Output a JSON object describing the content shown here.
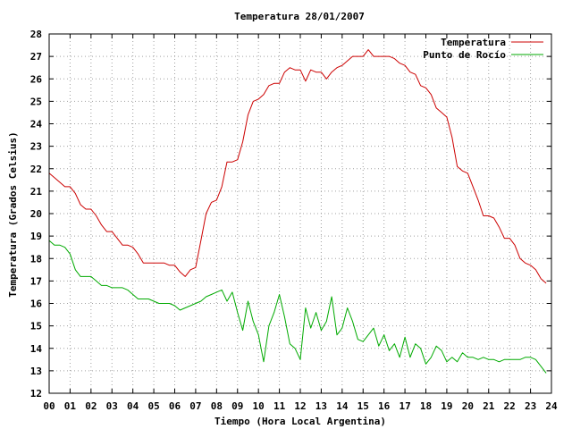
{
  "chart_data": {
    "type": "line",
    "title": "Temperatura 28/01/2007",
    "xlabel": "Tiempo (Hora Local Argentina)",
    "ylabel": "Temperatura (Grados Celsius)",
    "xlim": [
      0,
      24
    ],
    "ylim": [
      12,
      28
    ],
    "x_ticks": [
      "00",
      "01",
      "02",
      "03",
      "04",
      "05",
      "06",
      "07",
      "08",
      "09",
      "10",
      "11",
      "12",
      "13",
      "14",
      "15",
      "16",
      "17",
      "18",
      "19",
      "20",
      "21",
      "22",
      "23",
      "24"
    ],
    "y_ticks": [
      "12",
      "13",
      "14",
      "15",
      "16",
      "17",
      "18",
      "19",
      "20",
      "21",
      "22",
      "23",
      "24",
      "25",
      "26",
      "27",
      "28"
    ],
    "grid": true,
    "legend_position": "top-right",
    "series": [
      {
        "name": "Temperatura",
        "color": "#cc0000",
        "x": [
          0,
          0.25,
          0.5,
          0.75,
          1.0,
          1.25,
          1.5,
          1.75,
          2.0,
          2.25,
          2.5,
          2.75,
          3.0,
          3.25,
          3.5,
          3.75,
          4.0,
          4.25,
          4.5,
          4.75,
          5.0,
          5.25,
          5.5,
          5.75,
          6.0,
          6.25,
          6.5,
          6.75,
          7.0,
          7.25,
          7.5,
          7.75,
          8.0,
          8.25,
          8.5,
          8.75,
          9.0,
          9.25,
          9.5,
          9.75,
          10.0,
          10.25,
          10.5,
          10.75,
          11.0,
          11.25,
          11.5,
          11.75,
          12.0,
          12.25,
          12.5,
          12.75,
          13.0,
          13.25,
          13.5,
          13.75,
          14.0,
          14.25,
          14.5,
          14.75,
          15.0,
          15.25,
          15.5,
          15.75,
          16.0,
          16.25,
          16.5,
          16.75,
          17.0,
          17.25,
          17.5,
          17.75,
          18.0,
          18.25,
          18.5,
          18.75,
          19.0,
          19.25,
          19.5,
          19.75,
          20.0,
          20.25,
          20.5,
          20.75,
          21.0,
          21.25,
          21.5,
          21.75,
          22.0,
          22.25,
          22.5,
          22.75,
          23.0,
          23.25,
          23.5,
          23.75
        ],
        "values": [
          21.8,
          21.6,
          21.4,
          21.2,
          21.2,
          20.9,
          20.4,
          20.2,
          20.2,
          19.9,
          19.5,
          19.2,
          19.2,
          18.9,
          18.6,
          18.6,
          18.5,
          18.2,
          17.8,
          17.8,
          17.8,
          17.8,
          17.8,
          17.7,
          17.7,
          17.4,
          17.2,
          17.5,
          17.6,
          18.8,
          20.0,
          20.5,
          20.6,
          21.2,
          22.3,
          22.3,
          22.4,
          23.2,
          24.4,
          25.0,
          25.1,
          25.3,
          25.7,
          25.8,
          25.8,
          26.3,
          26.5,
          26.4,
          26.4,
          25.9,
          26.4,
          26.3,
          26.3,
          26.0,
          26.3,
          26.5,
          26.6,
          26.8,
          27.0,
          27.0,
          27.0,
          27.3,
          27.0,
          27.0,
          27.0,
          27.0,
          26.9,
          26.7,
          26.6,
          26.3,
          26.2,
          25.7,
          25.6,
          25.3,
          24.7,
          24.5,
          24.3,
          23.4,
          22.1,
          21.9,
          21.8,
          21.2,
          20.6,
          19.9,
          19.9,
          19.8,
          19.4,
          18.9,
          18.9,
          18.6,
          18.0,
          17.8,
          17.7,
          17.5,
          17.1,
          16.9
        ]
      },
      {
        "name": "Punto de Rocío",
        "color": "#00aa00",
        "x": [
          0,
          0.25,
          0.5,
          0.75,
          1.0,
          1.25,
          1.5,
          1.75,
          2.0,
          2.25,
          2.5,
          2.75,
          3.0,
          3.25,
          3.5,
          3.75,
          4.0,
          4.25,
          4.5,
          4.75,
          5.0,
          5.25,
          5.5,
          5.75,
          6.0,
          6.25,
          6.5,
          6.75,
          7.0,
          7.25,
          7.5,
          7.75,
          8.0,
          8.25,
          8.5,
          8.75,
          9.0,
          9.25,
          9.5,
          9.75,
          10.0,
          10.25,
          10.5,
          10.75,
          11.0,
          11.25,
          11.5,
          11.75,
          12.0,
          12.25,
          12.5,
          12.75,
          13.0,
          13.25,
          13.5,
          13.75,
          14.0,
          14.25,
          14.5,
          14.75,
          15.0,
          15.25,
          15.5,
          15.75,
          16.0,
          16.25,
          16.5,
          16.75,
          17.0,
          17.25,
          17.5,
          17.75,
          18.0,
          18.25,
          18.5,
          18.75,
          19.0,
          19.25,
          19.5,
          19.75,
          20.0,
          20.25,
          20.5,
          20.75,
          21.0,
          21.25,
          21.5,
          21.75,
          22.0,
          22.25,
          22.5,
          22.75,
          23.0,
          23.25,
          23.5,
          23.75
        ],
        "values": [
          18.8,
          18.6,
          18.6,
          18.5,
          18.2,
          17.5,
          17.2,
          17.2,
          17.2,
          17.0,
          16.8,
          16.8,
          16.7,
          16.7,
          16.7,
          16.6,
          16.4,
          16.2,
          16.2,
          16.2,
          16.1,
          16.0,
          16.0,
          16.0,
          15.9,
          15.7,
          15.8,
          15.9,
          16.0,
          16.1,
          16.3,
          16.4,
          16.5,
          16.6,
          16.1,
          16.5,
          15.6,
          14.8,
          16.1,
          15.2,
          14.6,
          13.4,
          15.0,
          15.6,
          16.4,
          15.4,
          14.2,
          14.0,
          13.5,
          15.8,
          14.9,
          15.6,
          14.8,
          15.2,
          16.3,
          14.6,
          14.9,
          15.8,
          15.2,
          14.4,
          14.3,
          14.6,
          14.9,
          14.1,
          14.6,
          13.9,
          14.2,
          13.6,
          14.5,
          13.6,
          14.2,
          14.0,
          13.3,
          13.6,
          14.1,
          13.9,
          13.4,
          13.6,
          13.4,
          13.8,
          13.6,
          13.6,
          13.5,
          13.6,
          13.5,
          13.5,
          13.4,
          13.5,
          13.5,
          13.5,
          13.5,
          13.6,
          13.6,
          13.5,
          13.2,
          12.9
        ]
      }
    ]
  }
}
